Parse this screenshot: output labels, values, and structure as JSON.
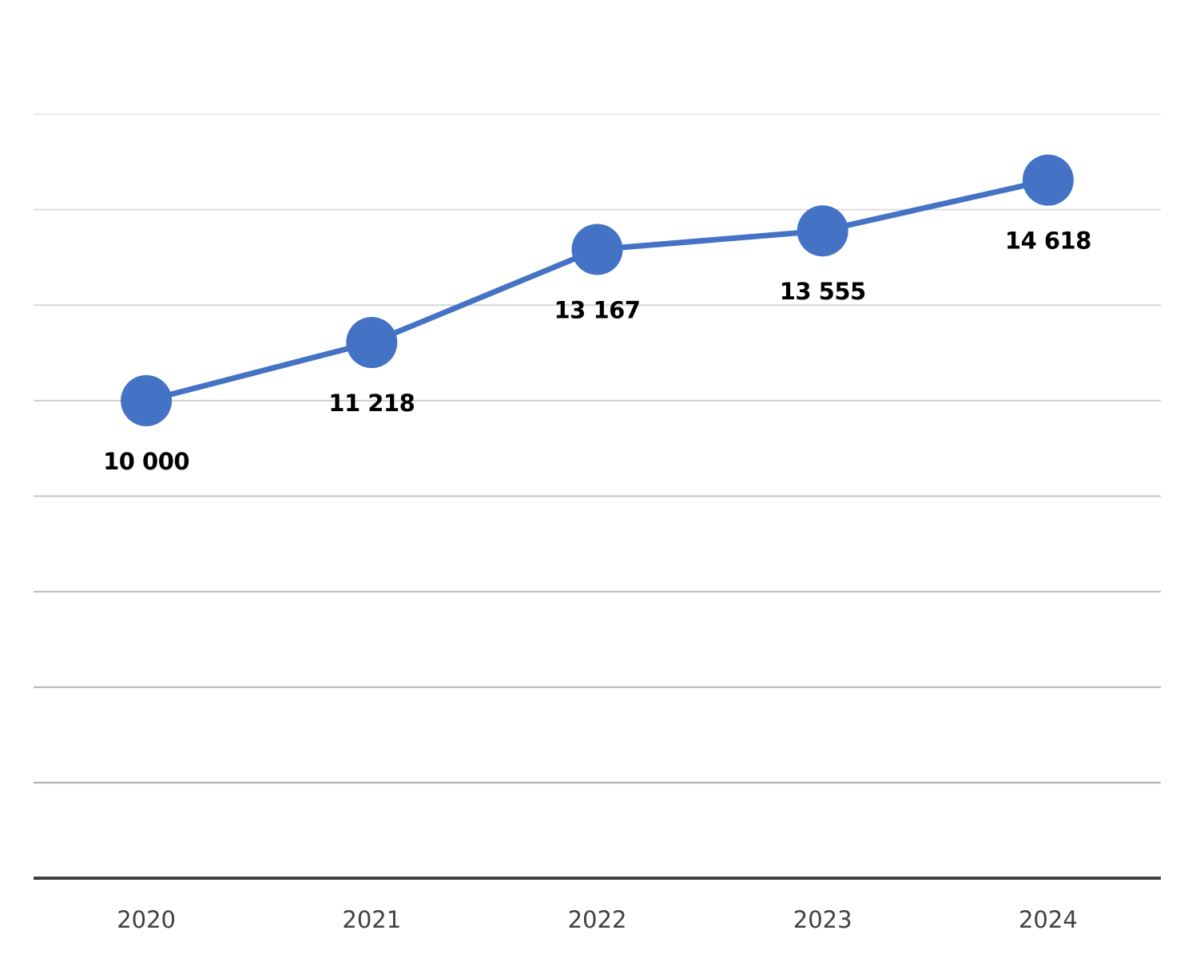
{
  "chart_data": {
    "type": "line",
    "categories": [
      "2020",
      "2021",
      "2022",
      "2023",
      "2024"
    ],
    "series": [
      {
        "values": [
          10000,
          11218,
          13167,
          13555,
          14618
        ],
        "value_labels": [
          "10 000",
          "11 218",
          "13 167",
          "13 555",
          "14 618"
        ],
        "color": "#4472C4",
        "markers": true
      }
    ],
    "title": "",
    "xlabel": "",
    "ylabel": "",
    "ylim": [
      0,
      16000
    ],
    "y_axis_labels_shown": false,
    "grid": true,
    "legend": "none",
    "colors": {
      "series": "#4472C4",
      "baseline": "#404040",
      "data_label": "#000000",
      "tick_label": "#404040"
    }
  }
}
